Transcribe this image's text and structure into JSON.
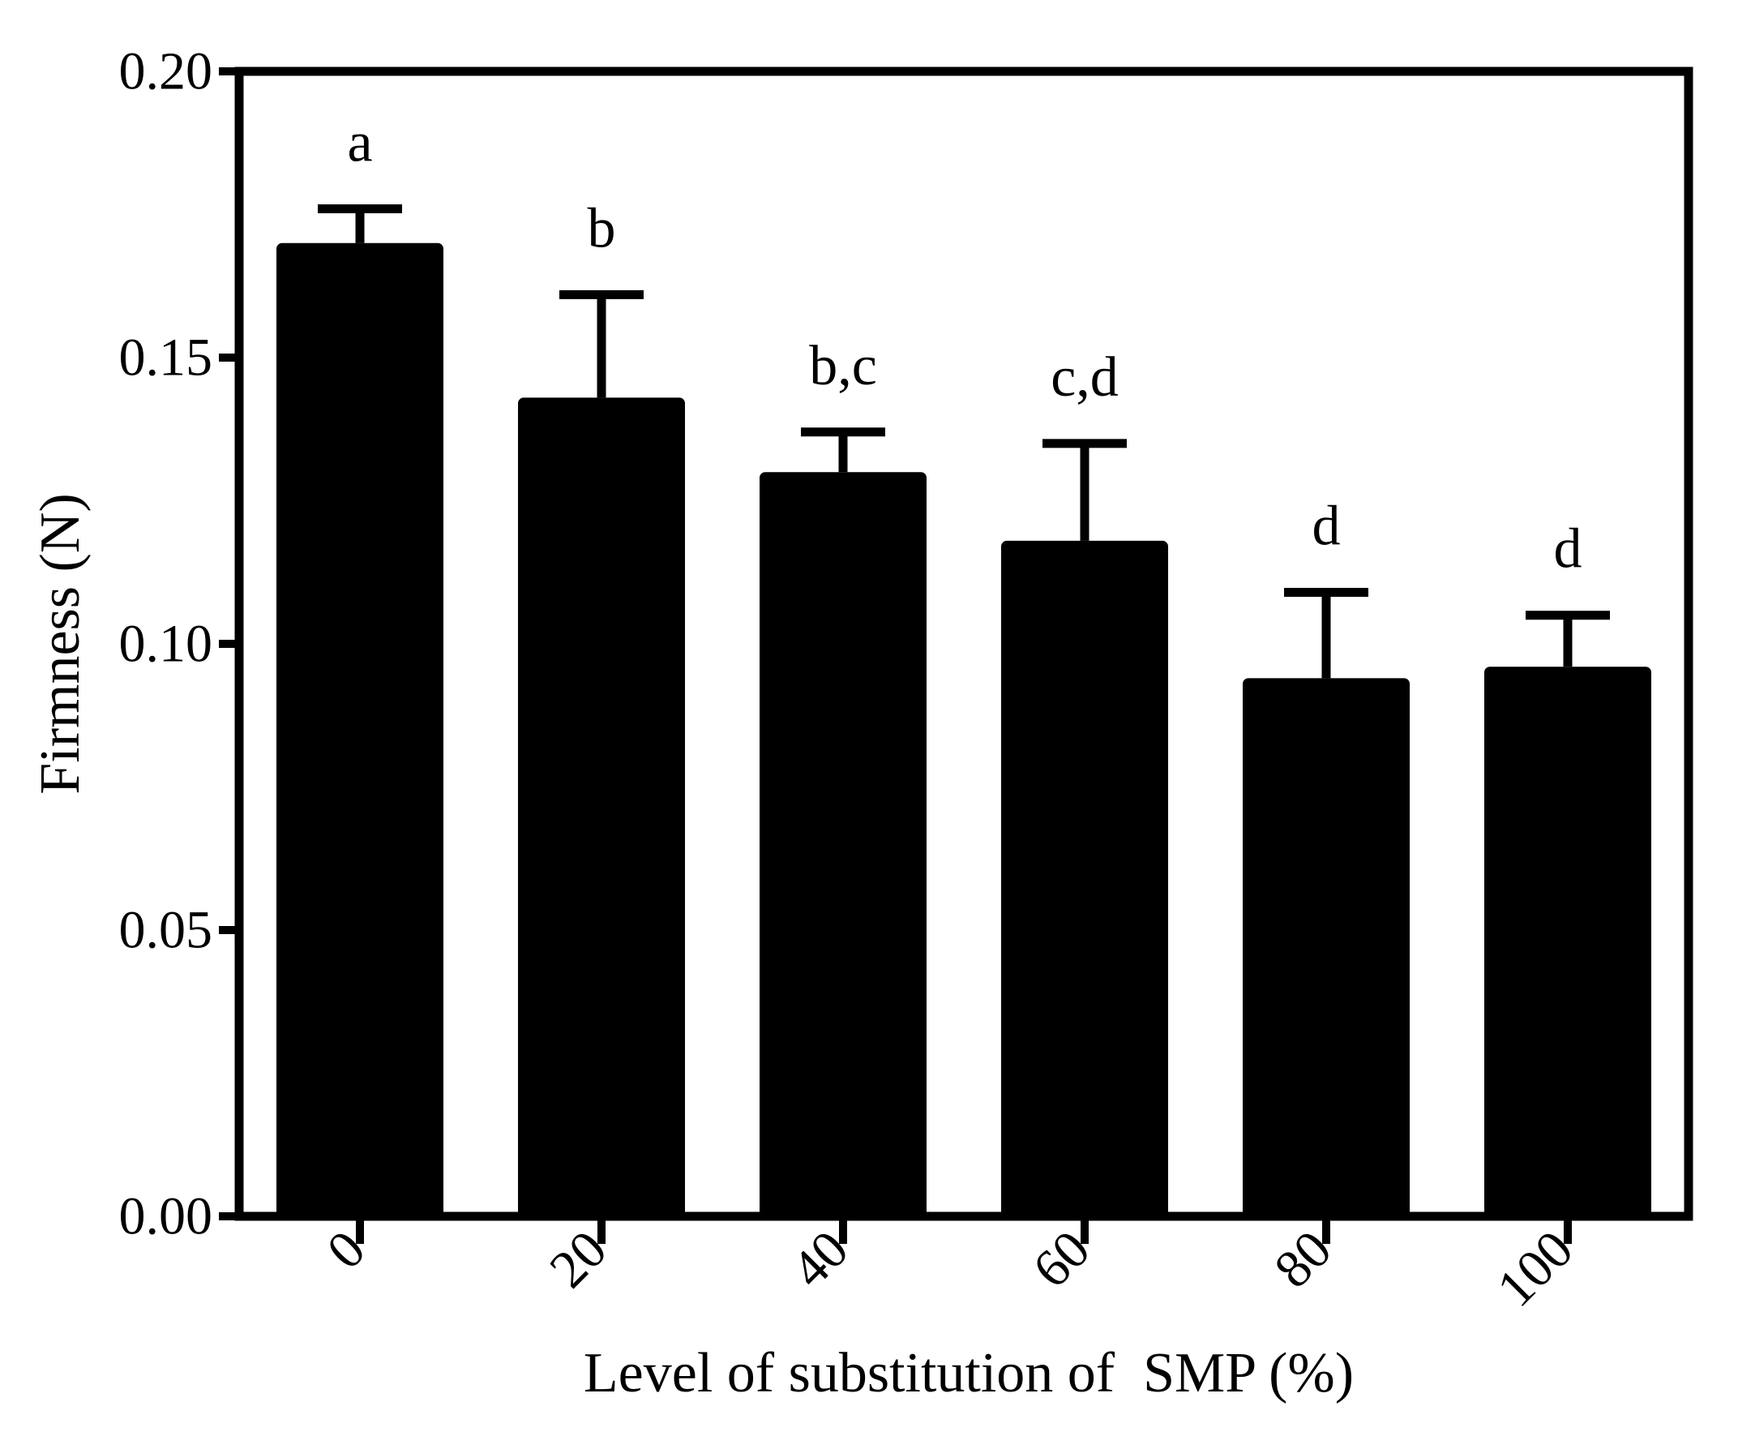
{
  "chart_data": {
    "type": "bar",
    "title": "",
    "xlabel": "Level of substitution of  SMP (%)",
    "ylabel": "Firmness (N)",
    "categories": [
      "0",
      "20",
      "40",
      "60",
      "80",
      "100"
    ],
    "values": [
      0.17,
      0.143,
      0.13,
      0.118,
      0.094,
      0.096
    ],
    "error_bar_tops": [
      0.176,
      0.161,
      0.137,
      0.135,
      0.109,
      0.105
    ],
    "significance_labels": [
      "a",
      "b",
      "b,c",
      "c,d",
      "d",
      "d"
    ],
    "ylim": [
      0,
      0.2
    ],
    "ytick_labels": [
      "0.00",
      "0.05",
      "0.10",
      "0.15",
      "0.20"
    ],
    "error_bar_style": "upper only, capped",
    "grid": false,
    "legend": "none",
    "bar_color": "#000000",
    "axis_color": "#000000",
    "background_color": "#ffffff"
  }
}
